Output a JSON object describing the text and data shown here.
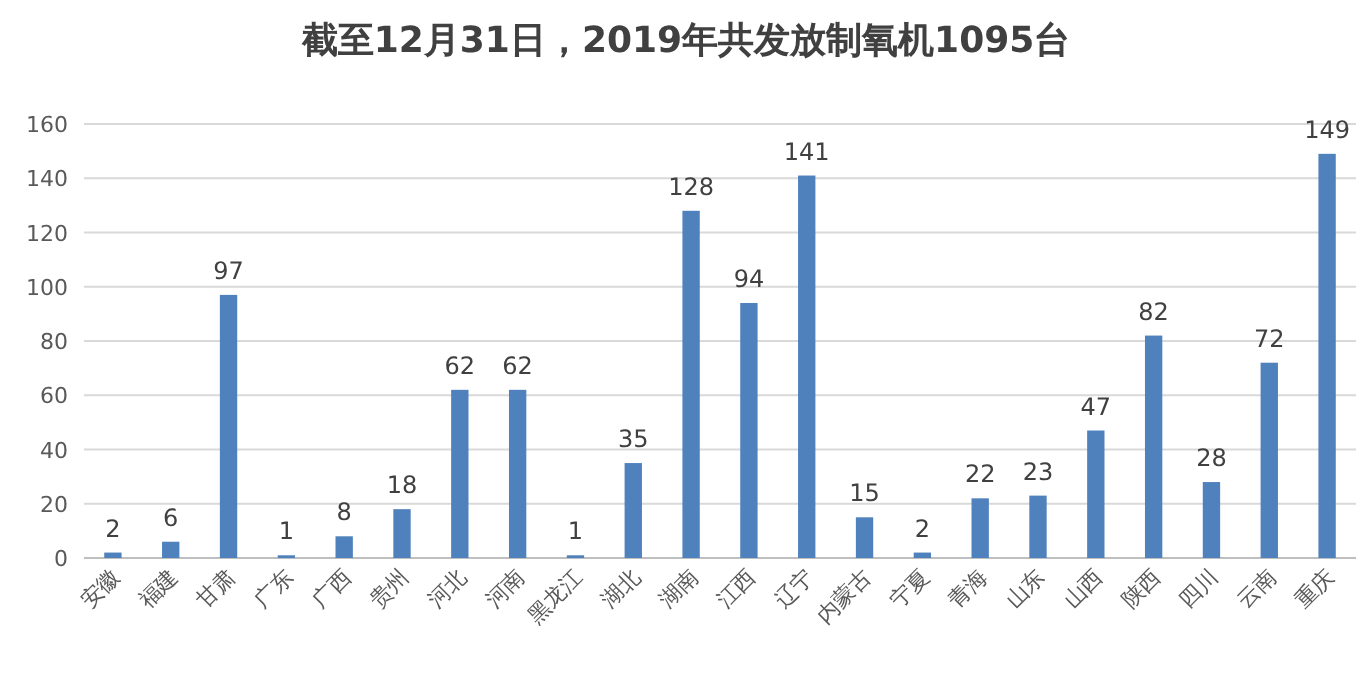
{
  "chart_data": {
    "type": "bar",
    "title": "截至12月31日，2019年共发放制氧机1095台",
    "categories": [
      "安徽",
      "福建",
      "甘肃",
      "广东",
      "广西",
      "贵州",
      "河北",
      "河南",
      "黑龙江",
      "湖北",
      "湖南",
      "江西",
      "辽宁",
      "内蒙古",
      "宁夏",
      "青海",
      "山东",
      "山西",
      "陕西",
      "四川",
      "云南",
      "重庆"
    ],
    "values": [
      2,
      6,
      97,
      1,
      8,
      18,
      62,
      62,
      1,
      35,
      128,
      94,
      141,
      15,
      2,
      22,
      23,
      47,
      82,
      28,
      72,
      149
    ],
    "color": "#4f81bd",
    "ylim": [
      0,
      160
    ],
    "yticks": [
      0,
      20,
      40,
      60,
      80,
      100,
      120,
      140,
      160
    ],
    "grid": "y",
    "data_labels": true
  }
}
